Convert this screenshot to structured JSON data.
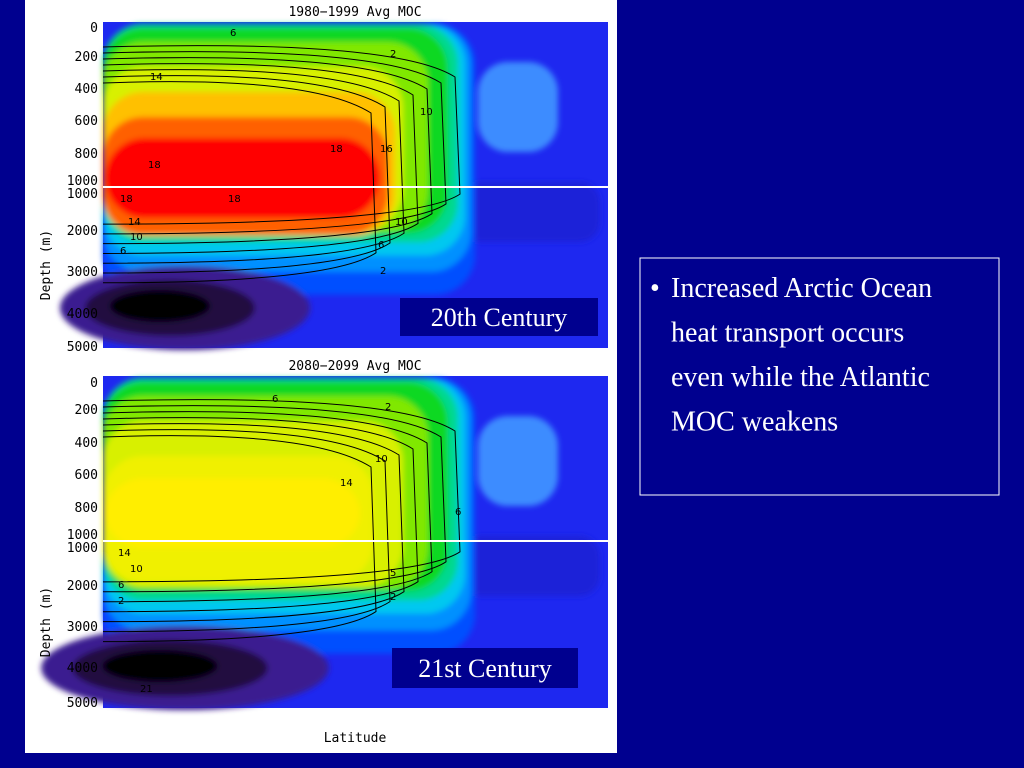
{
  "panels": [
    {
      "title": "1980−1999 Avg MOC",
      "y_label": "Depth (m)",
      "y_ticks": [
        "0",
        "200",
        "400",
        "600",
        "800",
        "1000",
        "1000",
        "2000",
        "3000",
        "4000",
        "5000"
      ],
      "contour_labels": [
        "6",
        "2",
        "14",
        "10",
        "18",
        "18",
        "18",
        "16",
        "18",
        "14",
        "10",
        "6",
        "10",
        "6",
        "2"
      ],
      "caption": "20th Century"
    },
    {
      "title": "2080−2099 Avg MOC",
      "y_label": "Depth (m)",
      "y_ticks": [
        "0",
        "200",
        "400",
        "600",
        "800",
        "1000",
        "1000",
        "2000",
        "3000",
        "4000",
        "5000"
      ],
      "contour_labels": [
        "6",
        "2",
        "10",
        "14",
        "6",
        "14",
        "10",
        "6",
        "2",
        "5",
        "2",
        "21"
      ],
      "caption": "21st Century"
    }
  ],
  "x_label": "Latitude",
  "bullet_lines": [
    "Increased Arctic Ocean",
    "heat transport occurs",
    "even while the Atlantic",
    "MOC weakens"
  ]
}
